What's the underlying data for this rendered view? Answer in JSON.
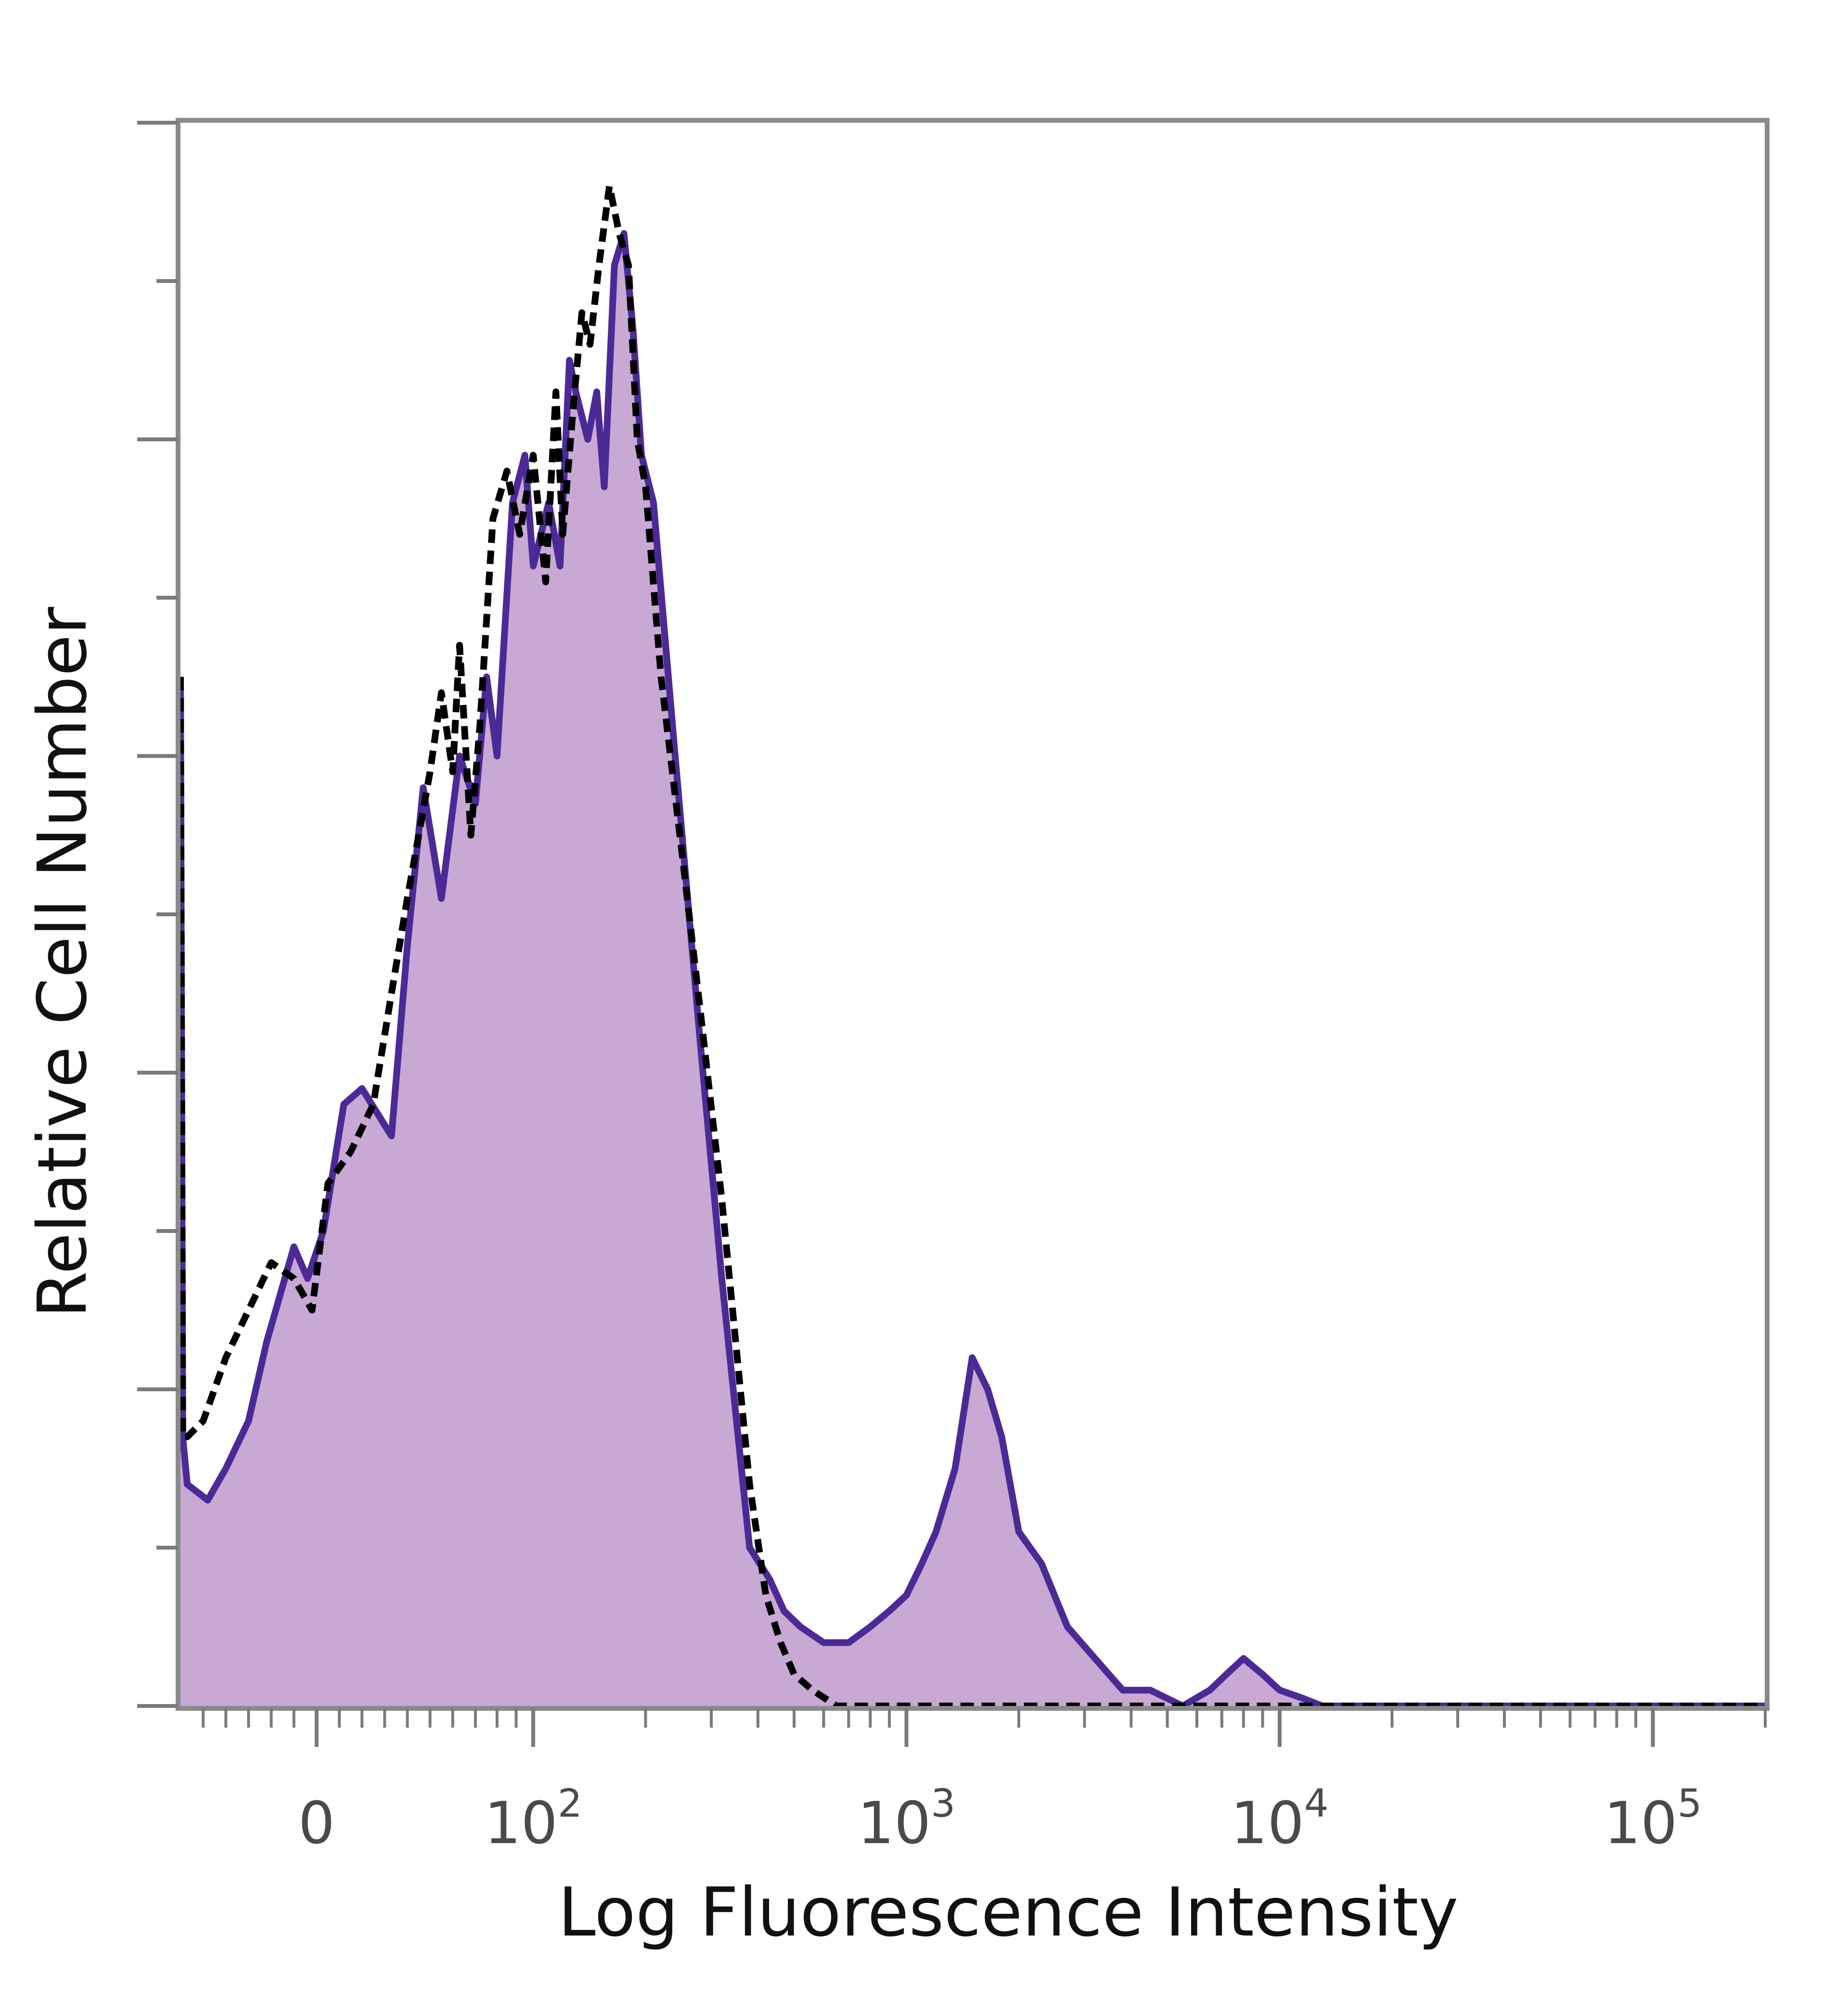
{
  "chart_data": {
    "type": "area",
    "title": "",
    "xlabel": "Log Fluorescence Intensity",
    "ylabel": "Relative Cell Number",
    "xscale": "biexponential",
    "xlim": [
      -60,
      200000
    ],
    "ylim": [
      0,
      100
    ],
    "x_tick_labels": [
      {
        "value": 0,
        "base": "0",
        "exp": ""
      },
      {
        "value": 100,
        "base": "10",
        "exp": "2"
      },
      {
        "value": 1000,
        "base": "10",
        "exp": "3"
      },
      {
        "value": 10000,
        "base": "10",
        "exp": "4"
      },
      {
        "value": 100000,
        "base": "10",
        "exp": "5"
      }
    ],
    "grid": false,
    "legend": "none",
    "colors": {
      "filled_fill": "#c7a9d4",
      "filled_line": "#4b2a96",
      "control_line": "#000000"
    },
    "series": [
      {
        "style": "filled",
        "x": [
          -60,
          -59,
          -57,
          -48,
          -40,
          -30,
          -22,
          -10,
          -4,
          3,
          12,
          20,
          33,
          40,
          47,
          55,
          63,
          70,
          75,
          80,
          88,
          95,
          100,
          110,
          118,
          125,
          130,
          140,
          148,
          155,
          165,
          175,
          185,
          195,
          210,
          240,
          280,
          320,
          380,
          430,
          470,
          520,
          600,
          700,
          800,
          900,
          1000,
          1100,
          1200,
          1350,
          1500,
          1650,
          1800,
          2000,
          2300,
          2700,
          3200,
          3800,
          4500,
          5500,
          6500,
          7200,
          8000,
          9000,
          10000,
          11500,
          13000,
          16000,
          30000,
          60000,
          100000,
          200000
        ],
        "y": [
          65,
          17,
          14,
          13,
          15,
          18,
          23,
          29,
          27,
          30,
          38,
          39,
          36,
          48,
          58,
          51,
          60,
          57,
          65,
          60,
          76,
          79,
          72,
          76,
          72,
          85,
          83,
          80,
          83,
          77,
          91,
          93,
          87,
          79,
          76,
          60,
          42,
          27,
          10,
          8,
          6,
          5,
          4,
          4,
          5,
          6,
          7,
          9,
          11,
          15,
          22,
          20,
          17,
          11,
          9,
          5,
          3,
          1,
          1,
          0,
          1,
          2,
          3,
          2,
          1,
          0.5,
          0,
          0,
          0,
          0,
          0,
          0
        ]
      },
      {
        "style": "dashed",
        "x": [
          -60,
          -59,
          -57,
          -50,
          -40,
          -30,
          -20,
          -10,
          -2,
          5,
          15,
          25,
          33,
          40,
          50,
          55,
          60,
          63,
          68,
          72,
          78,
          85,
          92,
          100,
          108,
          115,
          120,
          128,
          135,
          142,
          150,
          160,
          170,
          180,
          190,
          200,
          220,
          250,
          280,
          320,
          380,
          420,
          460,
          500,
          560,
          650,
          800,
          1000,
          5000,
          200000
        ],
        "y": [
          65,
          17,
          17,
          18,
          22,
          25,
          28,
          27,
          25,
          33,
          35,
          38,
          45,
          51,
          59,
          64,
          59,
          67,
          55,
          62,
          75,
          78,
          74,
          79,
          71,
          83,
          74,
          82,
          88,
          86,
          91,
          96,
          93,
          91,
          80,
          77,
          65,
          54,
          44,
          32,
          14,
          7,
          4,
          2,
          1,
          0,
          0,
          0,
          0,
          0
        ]
      }
    ]
  }
}
